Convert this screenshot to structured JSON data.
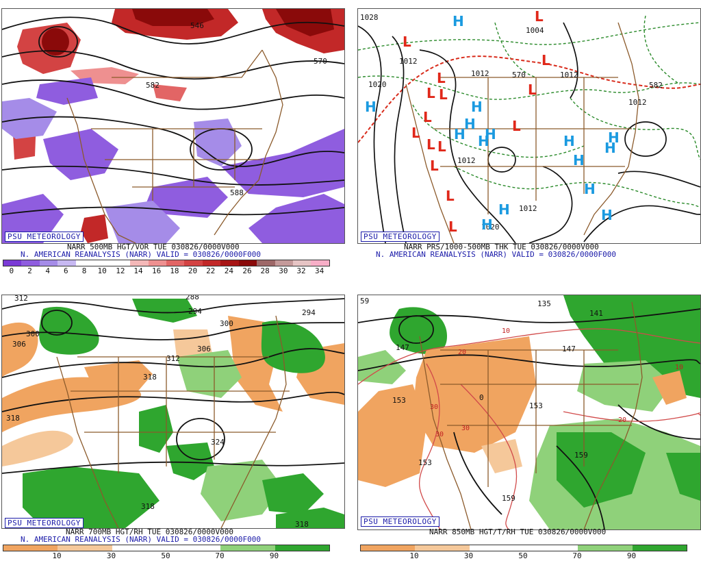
{
  "panels": [
    {
      "brand": "PSU METEOROLOGY",
      "title": "NARR 500MB HGT/VOR TUE 030826/0000V000",
      "subtitle": "N. AMERICAN REANALYSIS (NARR) VALID = 030826/0000F000",
      "contour_labels": [
        "546",
        "570",
        "582",
        "588"
      ],
      "colorbar": {
        "labels": [
          "0",
          "2",
          "4",
          "6",
          "8",
          "10",
          "12",
          "14",
          "16",
          "18",
          "20",
          "22",
          "24",
          "26",
          "28",
          "30",
          "32",
          "34"
        ],
        "colors": [
          "#7a3ad6",
          "#8f5ddf",
          "#a58ce8",
          "#c7b9f2",
          "#ffffff",
          "#ffffff",
          "#ffffff",
          "#f4b8b8",
          "#ee9090",
          "#e26565",
          "#d34343",
          "#c22828",
          "#a71414",
          "#8a0a0a",
          "#9e6868",
          "#c49a9a",
          "#e6c4c4",
          "#f7aec7"
        ]
      }
    },
    {
      "brand": "PSU METEOROLOGY",
      "title": "NARR PRS/1000-500MB THK TUE 030826/0000V000",
      "subtitle": "N. AMERICAN REANALYSIS (NARR) VALID = 030826/0000F000",
      "contour_labels": [
        "1028",
        "1012",
        "1020",
        "1004",
        "1012",
        "1012",
        "1012",
        "1012",
        "1020",
        "1012",
        "570",
        "582"
      ],
      "high_symbol": "H",
      "low_symbol": "L"
    },
    {
      "brand": "PSU METEOROLOGY",
      "title": "NARR 700MB HGT/RH TUE 030826/0000V000",
      "subtitle": "N. AMERICAN REANALYSIS (NARR) VALID = 030826/0000F000",
      "contour_labels": [
        "312",
        "300",
        "306",
        "288",
        "294",
        "300",
        "306",
        "312",
        "318",
        "294",
        "318",
        "324",
        "318",
        "318"
      ],
      "colorbar": {
        "labels": [
          "10",
          "30",
          "50",
          "70",
          "90"
        ],
        "colors": [
          "#f0a460",
          "#f5c89a",
          "#ffffff",
          "#ffffff",
          "#8fd17a",
          "#2fa62f"
        ]
      }
    },
    {
      "brand": "PSU METEOROLOGY",
      "title": "NARR 850MB HGT/T/RH TUE 030826/0000V000",
      "contour_labels": [
        "59",
        "147",
        "153",
        "153",
        "135",
        "141",
        "147",
        "0",
        "153",
        "159",
        "159",
        "10",
        "20",
        "30",
        "30",
        "30",
        "20",
        "10"
      ],
      "colorbar": {
        "labels": [
          "10",
          "30",
          "50",
          "70",
          "90"
        ],
        "colors": [
          "#f0a460",
          "#f5c89a",
          "#ffffff",
          "#ffffff",
          "#8fd17a",
          "#2fa62f"
        ]
      }
    }
  ],
  "colors": {
    "brown_border": "#8b5a2b",
    "contour": "#111111",
    "title_blue": "#1a1aa8",
    "high_blue": "#1a9ae0",
    "low_red": "#e0281a"
  }
}
